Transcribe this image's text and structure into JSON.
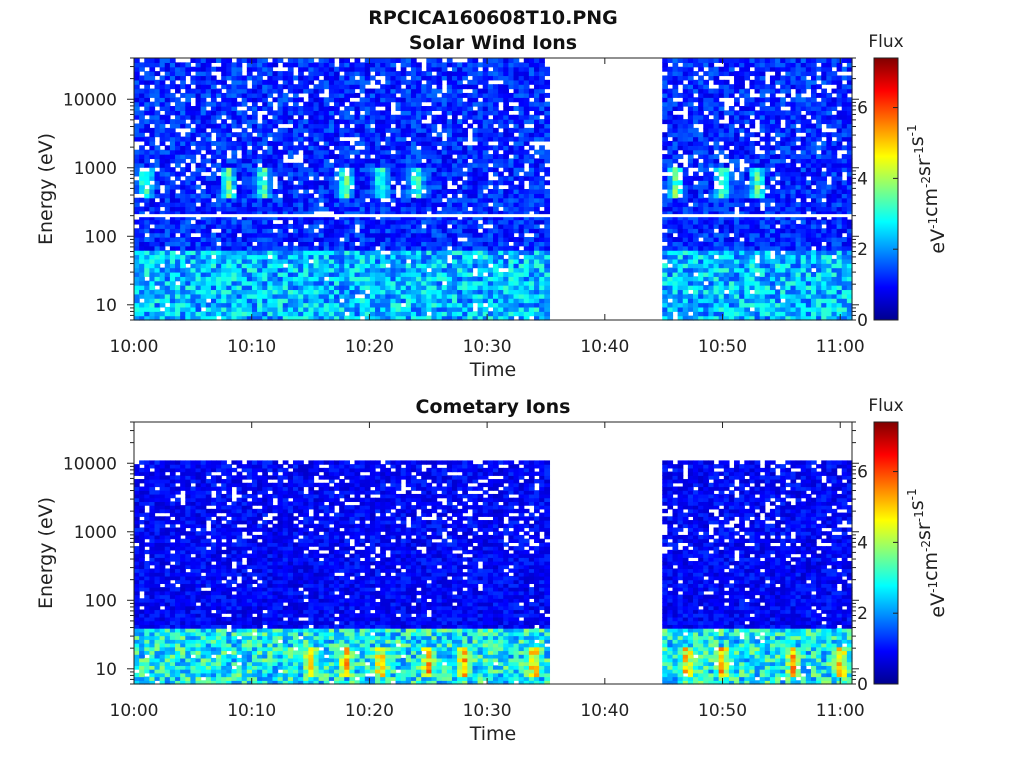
{
  "figure_title": "RPCICA160608T10.PNG",
  "colors": {
    "colormap": [
      "#00008f",
      "#0000ff",
      "#0080ff",
      "#00ffff",
      "#80ff80",
      "#ffff00",
      "#ff8000",
      "#ff0000",
      "#800000"
    ],
    "gap_fill": "#ffffff",
    "axis": "#222222"
  },
  "chart_data": [
    {
      "type": "heatmap",
      "title": "Solar Wind Ions",
      "xlabel": "Time",
      "ylabel": "Energy (eV)",
      "x_ticks": [
        "10:00",
        "10:10",
        "10:20",
        "10:30",
        "10:40",
        "10:50",
        "11:00"
      ],
      "x_range": [
        "10:00",
        "11:01"
      ],
      "y_ticks": [
        "10",
        "100",
        "1000",
        "10000"
      ],
      "y_scale": "log",
      "y_range": [
        6,
        40000
      ],
      "data_gap": [
        "10:35:30",
        "10:45:00"
      ],
      "colorbar": {
        "label": "Flux",
        "unit": "eV-1cm-2sr-1s-1",
        "ticks": [
          "0",
          "2",
          "4",
          "6"
        ],
        "range": [
          0,
          7.4
        ]
      },
      "features": {
        "background_level": 1.2,
        "low_energy_band_eV": [
          6,
          60
        ],
        "low_energy_level": 2.3,
        "peak_energy_eV": 600,
        "peak_times": [
          "10:01",
          "10:08",
          "10:11",
          "10:18",
          "10:21",
          "10:24",
          "10:46",
          "10:50",
          "10:53"
        ],
        "peak_level": 3.8,
        "white_line_energy_eV": 200
      }
    },
    {
      "type": "heatmap",
      "title": "Cometary Ions",
      "xlabel": "Time",
      "ylabel": "Energy (eV)",
      "x_ticks": [
        "10:00",
        "10:10",
        "10:20",
        "10:30",
        "10:40",
        "10:50",
        "11:00"
      ],
      "x_range": [
        "10:00",
        "11:01"
      ],
      "y_ticks": [
        "10",
        "100",
        "1000",
        "10000"
      ],
      "y_scale": "log",
      "y_range": [
        6,
        40000
      ],
      "data_max_energy_eV": 11000,
      "data_gap": [
        "10:35:30",
        "10:45:00"
      ],
      "colorbar": {
        "label": "Flux",
        "unit": "eV-1cm-2sr-1s-1",
        "ticks": [
          "0",
          "2",
          "4",
          "6"
        ],
        "range": [
          0,
          7.4
        ]
      },
      "features": {
        "background_level": 0.9,
        "low_energy_band_eV": [
          6,
          40
        ],
        "low_energy_level": 2.8,
        "peak_energy_eV": 13,
        "peak_times": [
          "10:15",
          "10:18",
          "10:21",
          "10:25",
          "10:28",
          "10:34",
          "10:47",
          "10:50",
          "10:56",
          "11:00"
        ],
        "peak_level": 5.8
      }
    }
  ]
}
